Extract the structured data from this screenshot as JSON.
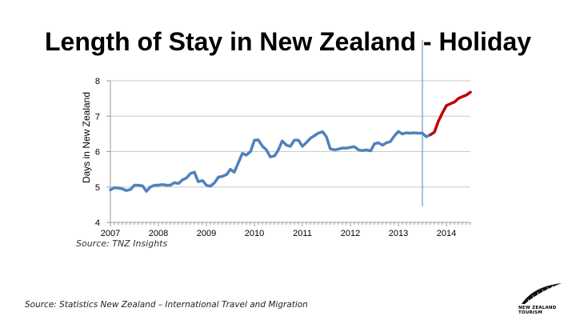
{
  "title": "Length of Stay in New Zealand - Holiday",
  "source_top": "Source: TNZ Insights",
  "source_bottom": "Source: Statistics New Zealand – International Travel and Migration",
  "logo": {
    "line1": "NEW ZEALAND",
    "line2": "TOURISM",
    "icon": "silver-fern-icon"
  },
  "colors": {
    "actual": "#4f81bd",
    "forecast": "#c00000",
    "divider": "#4f81bd",
    "grid": "#c8c8c8"
  },
  "chart_data": {
    "type": "line",
    "title": "Length of Stay in New Zealand - Holiday",
    "xlabel": "",
    "ylabel": "Days in New Zealand",
    "ylim": [
      4,
      8
    ],
    "yticks": [
      4,
      5,
      6,
      7,
      8
    ],
    "xticks": [
      "2007",
      "2008",
      "2009",
      "2010",
      "2011",
      "2012",
      "2013",
      "2014"
    ],
    "xlim": [
      2007,
      2014.5
    ],
    "grid": "horizontal",
    "divider_x": 2013.5,
    "series": [
      {
        "x": [
          2007.0,
          2007.08,
          2007.17,
          2007.25,
          2007.33,
          2007.42,
          2007.5,
          2007.58,
          2007.67,
          2007.75,
          2007.83,
          2007.92,
          2008.0,
          2008.08,
          2008.17,
          2008.25,
          2008.33,
          2008.42,
          2008.5,
          2008.58,
          2008.67,
          2008.75,
          2008.83,
          2008.92,
          2009.0,
          2009.08,
          2009.17,
          2009.25,
          2009.33,
          2009.42,
          2009.5,
          2009.58,
          2009.67,
          2009.75,
          2009.83,
          2009.92,
          2010.0,
          2010.08,
          2010.17,
          2010.25,
          2010.33,
          2010.42,
          2010.5,
          2010.58,
          2010.67,
          2010.75,
          2010.83,
          2010.92,
          2011.0,
          2011.08,
          2011.17,
          2011.25,
          2011.33,
          2011.42,
          2011.5,
          2011.58,
          2011.67,
          2011.75,
          2011.83,
          2011.92,
          2012.0,
          2012.08,
          2012.17,
          2012.25,
          2012.33,
          2012.42,
          2012.5,
          2012.58,
          2012.67,
          2012.75,
          2012.83,
          2012.92,
          2013.0,
          2013.08,
          2013.17,
          2013.25,
          2013.33,
          2013.42,
          2013.5,
          2013.58,
          2013.67
        ],
        "values": [
          4.92,
          4.98,
          4.97,
          4.95,
          4.9,
          4.93,
          5.05,
          5.05,
          5.03,
          4.88,
          5.0,
          5.05,
          5.05,
          5.07,
          5.05,
          5.05,
          5.12,
          5.1,
          5.2,
          5.25,
          5.38,
          5.42,
          5.15,
          5.18,
          5.05,
          5.02,
          5.12,
          5.28,
          5.3,
          5.35,
          5.5,
          5.42,
          5.7,
          5.95,
          5.9,
          6.0,
          6.32,
          6.33,
          6.15,
          6.05,
          5.85,
          5.88,
          6.05,
          6.3,
          6.18,
          6.15,
          6.32,
          6.32,
          6.15,
          6.25,
          6.38,
          6.45,
          6.52,
          6.56,
          6.42,
          6.08,
          6.05,
          6.07,
          6.1,
          6.1,
          6.12,
          6.14,
          6.05,
          6.03,
          6.05,
          6.02,
          6.22,
          6.25,
          6.18,
          6.25,
          6.28,
          6.45,
          6.57,
          6.5,
          6.53,
          6.52,
          6.53,
          6.52,
          6.52,
          6.42,
          6.48
        ]
      },
      {
        "x": [
          2013.67,
          2013.75,
          2013.83,
          2013.92,
          2014.0,
          2014.08,
          2014.17,
          2014.25,
          2014.33,
          2014.42,
          2014.5
        ],
        "values": [
          6.48,
          6.55,
          6.85,
          7.1,
          7.3,
          7.35,
          7.4,
          7.5,
          7.55,
          7.6,
          7.68
        ]
      }
    ]
  }
}
